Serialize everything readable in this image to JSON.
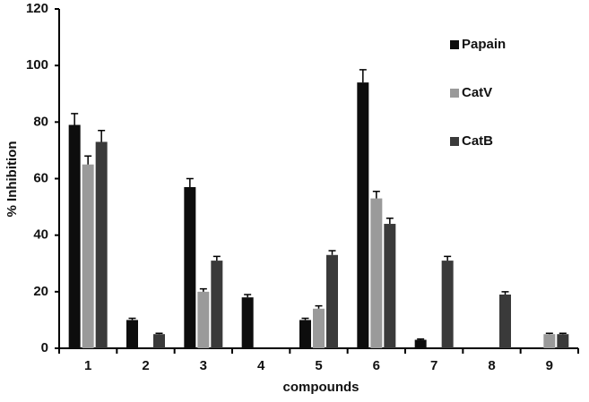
{
  "chart_data": {
    "type": "bar",
    "x_label": "compounds",
    "y_label": "% Inhibition",
    "categories": [
      "1",
      "2",
      "3",
      "4",
      "5",
      "6",
      "7",
      "8",
      "9"
    ],
    "series": [
      {
        "name": "Papain",
        "color": "#0d0d0d",
        "values": [
          79,
          10,
          57,
          18,
          10,
          94,
          3,
          0,
          0
        ],
        "errors": [
          4,
          0.6,
          3,
          1,
          0.6,
          4.5,
          0.3,
          null,
          null
        ]
      },
      {
        "name": "CatV",
        "color": "#9a9a9a",
        "values": [
          65,
          0,
          20,
          0,
          14,
          53,
          0,
          0,
          5
        ],
        "errors": [
          3,
          null,
          1,
          null,
          1,
          2.5,
          null,
          null,
          0.3
        ]
      },
      {
        "name": "CatB",
        "color": "#3a3a3a",
        "values": [
          73,
          5,
          31,
          0,
          33,
          44,
          31,
          19,
          5
        ],
        "errors": [
          4,
          0.3,
          1.5,
          null,
          1.5,
          2,
          1.5,
          1,
          0.3
        ]
      }
    ],
    "ylim": [
      0,
      120
    ],
    "yticks": [
      0,
      20,
      40,
      60,
      80,
      100,
      120
    ],
    "grid": false,
    "legend": "upper right"
  }
}
